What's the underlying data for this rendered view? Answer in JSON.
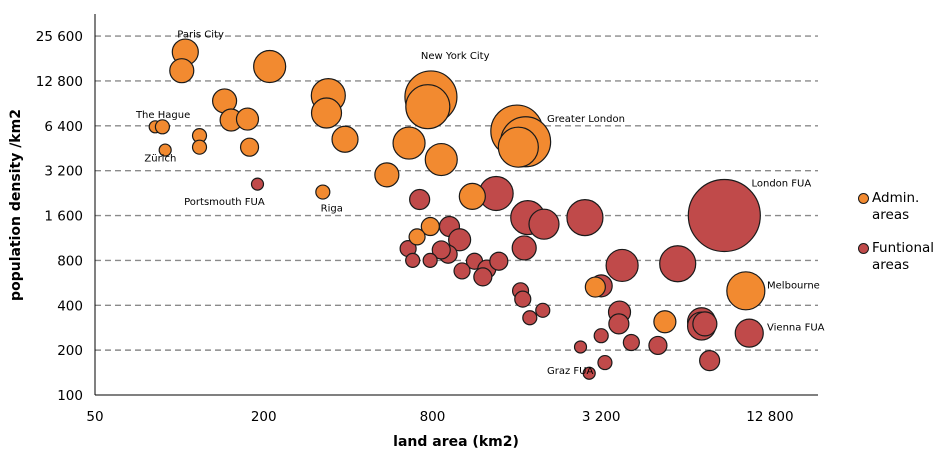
{
  "chart_data": {
    "type": "scatter",
    "title": "",
    "xlabel": "land area (km2)",
    "ylabel": "population density /km2",
    "x_scale": "log2",
    "y_scale": "log2",
    "xlim": [
      50,
      19000
    ],
    "ylim": [
      100,
      36000
    ],
    "x_ticks": [
      {
        "value": 50,
        "label": "50"
      },
      {
        "value": 200,
        "label": "200"
      },
      {
        "value": 800,
        "label": "800"
      },
      {
        "value": 3200,
        "label": "3 200"
      },
      {
        "value": 12800,
        "label": "12 800"
      }
    ],
    "y_ticks": [
      {
        "value": 100,
        "label": "100"
      },
      {
        "value": 200,
        "label": "200"
      },
      {
        "value": 400,
        "label": "400"
      },
      {
        "value": 800,
        "label": "800"
      },
      {
        "value": 1600,
        "label": "1 600"
      },
      {
        "value": 3200,
        "label": "3 200"
      },
      {
        "value": 6400,
        "label": "6 400"
      },
      {
        "value": 12800,
        "label": "12 800"
      },
      {
        "value": 25600,
        "label": "25 600"
      }
    ],
    "grid": "horizontal dashed",
    "legend_position": "right",
    "series": [
      {
        "name": "Admin. areas",
        "color": "#f28a30",
        "points": [
          {
            "x": 105,
            "y": 20000,
            "size": 13
          },
          {
            "x": 102,
            "y": 15000,
            "size": 12
          },
          {
            "x": 210,
            "y": 16000,
            "size": 16
          },
          {
            "x": 145,
            "y": 9400,
            "size": 12
          },
          {
            "x": 153,
            "y": 7000,
            "size": 11
          },
          {
            "x": 175,
            "y": 7100,
            "size": 11
          },
          {
            "x": 178,
            "y": 4600,
            "size": 9
          },
          {
            "x": 340,
            "y": 10200,
            "size": 17
          },
          {
            "x": 335,
            "y": 7800,
            "size": 15
          },
          {
            "x": 390,
            "y": 5200,
            "size": 13
          },
          {
            "x": 82,
            "y": 6300,
            "size": 6
          },
          {
            "x": 87,
            "y": 6300,
            "size": 7
          },
          {
            "x": 118,
            "y": 5500,
            "size": 7
          },
          {
            "x": 89,
            "y": 4400,
            "size": 6
          },
          {
            "x": 118,
            "y": 4600,
            "size": 7
          },
          {
            "x": 790,
            "y": 10000,
            "size": 26
          },
          {
            "x": 770,
            "y": 8600,
            "size": 22
          },
          {
            "x": 660,
            "y": 4900,
            "size": 16
          },
          {
            "x": 860,
            "y": 3800,
            "size": 16
          },
          {
            "x": 550,
            "y": 3000,
            "size": 12
          },
          {
            "x": 1600,
            "y": 5900,
            "size": 26
          },
          {
            "x": 1720,
            "y": 5000,
            "size": 25
          },
          {
            "x": 1620,
            "y": 4600,
            "size": 20
          },
          {
            "x": 325,
            "y": 2300,
            "size": 7
          },
          {
            "x": 1110,
            "y": 2150,
            "size": 13
          },
          {
            "x": 786,
            "y": 1350,
            "size": 9
          },
          {
            "x": 705,
            "y": 1150,
            "size": 8
          },
          {
            "x": 3050,
            "y": 530,
            "size": 10
          },
          {
            "x": 5400,
            "y": 310,
            "size": 11
          },
          {
            "x": 10500,
            "y": 500,
            "size": 19
          }
        ]
      },
      {
        "name": "Funtional areas",
        "color": "#c04a4a",
        "points": [
          {
            "x": 190,
            "y": 2600,
            "size": 6
          },
          {
            "x": 720,
            "y": 2050,
            "size": 10
          },
          {
            "x": 1350,
            "y": 2250,
            "size": 17
          },
          {
            "x": 1750,
            "y": 1550,
            "size": 17
          },
          {
            "x": 2000,
            "y": 1400,
            "size": 15
          },
          {
            "x": 2800,
            "y": 1550,
            "size": 18
          },
          {
            "x": 8800,
            "y": 1600,
            "size": 36
          },
          {
            "x": 920,
            "y": 1350,
            "size": 10
          },
          {
            "x": 1000,
            "y": 1100,
            "size": 11
          },
          {
            "x": 910,
            "y": 880,
            "size": 9
          },
          {
            "x": 860,
            "y": 940,
            "size": 9
          },
          {
            "x": 1700,
            "y": 970,
            "size": 12
          },
          {
            "x": 655,
            "y": 960,
            "size": 8
          },
          {
            "x": 680,
            "y": 800,
            "size": 7
          },
          {
            "x": 785,
            "y": 800,
            "size": 7
          },
          {
            "x": 1130,
            "y": 790,
            "size": 8
          },
          {
            "x": 1250,
            "y": 700,
            "size": 9
          },
          {
            "x": 1380,
            "y": 790,
            "size": 9
          },
          {
            "x": 1020,
            "y": 680,
            "size": 8
          },
          {
            "x": 1210,
            "y": 620,
            "size": 9
          },
          {
            "x": 3800,
            "y": 740,
            "size": 16
          },
          {
            "x": 6000,
            "y": 760,
            "size": 18
          },
          {
            "x": 3200,
            "y": 540,
            "size": 11
          },
          {
            "x": 1650,
            "y": 500,
            "size": 8
          },
          {
            "x": 1680,
            "y": 440,
            "size": 8
          },
          {
            "x": 1980,
            "y": 370,
            "size": 7
          },
          {
            "x": 1780,
            "y": 330,
            "size": 7
          },
          {
            "x": 3720,
            "y": 360,
            "size": 11
          },
          {
            "x": 3700,
            "y": 300,
            "size": 10
          },
          {
            "x": 3200,
            "y": 250,
            "size": 7
          },
          {
            "x": 4100,
            "y": 225,
            "size": 8
          },
          {
            "x": 2700,
            "y": 210,
            "size": 6
          },
          {
            "x": 5100,
            "y": 215,
            "size": 9
          },
          {
            "x": 7300,
            "y": 310,
            "size": 14
          },
          {
            "x": 7300,
            "y": 290,
            "size": 14
          },
          {
            "x": 7500,
            "y": 300,
            "size": 12
          },
          {
            "x": 10800,
            "y": 260,
            "size": 14
          },
          {
            "x": 7800,
            "y": 170,
            "size": 10
          },
          {
            "x": 3300,
            "y": 165,
            "size": 7
          },
          {
            "x": 2900,
            "y": 140,
            "size": 6
          }
        ]
      }
    ],
    "annotations": [
      {
        "text": "Paris City",
        "x": 105,
        "y": 25000,
        "anchor": "start",
        "dx": -8,
        "dy": 0
      },
      {
        "text": "The Hague",
        "x": 70,
        "y": 7200,
        "anchor": "start",
        "dx": 0,
        "dy": 0
      },
      {
        "text": "Zürich",
        "x": 72,
        "y": 3700,
        "anchor": "start",
        "dx": 5,
        "dy": 0
      },
      {
        "text": "Portsmouth FUA",
        "x": 104,
        "y": 1880,
        "anchor": "start",
        "dx": 0,
        "dy": 0
      },
      {
        "text": "Riga",
        "x": 330,
        "y": 1700,
        "anchor": "start",
        "dx": -4,
        "dy": 0
      },
      {
        "text": "New York City",
        "x": 790,
        "y": 18000,
        "anchor": "start",
        "dx": -10,
        "dy": 0
      },
      {
        "text": "Greater London",
        "x": 2050,
        "y": 6800,
        "anchor": "start",
        "dx": 0,
        "dy": 0
      },
      {
        "text": "London FUA",
        "x": 11000,
        "y": 2500,
        "anchor": "start",
        "dx": 0,
        "dy": 0
      },
      {
        "text": "Melbourne",
        "x": 12500,
        "y": 520,
        "anchor": "start",
        "dx": 0,
        "dy": 0
      },
      {
        "text": "Vienna FUA",
        "x": 12500,
        "y": 270,
        "anchor": "start",
        "dx": 0,
        "dy": 0
      },
      {
        "text": "Graz FUA",
        "x": 2050,
        "y": 138,
        "anchor": "start",
        "dx": 0,
        "dy": 0
      }
    ]
  }
}
